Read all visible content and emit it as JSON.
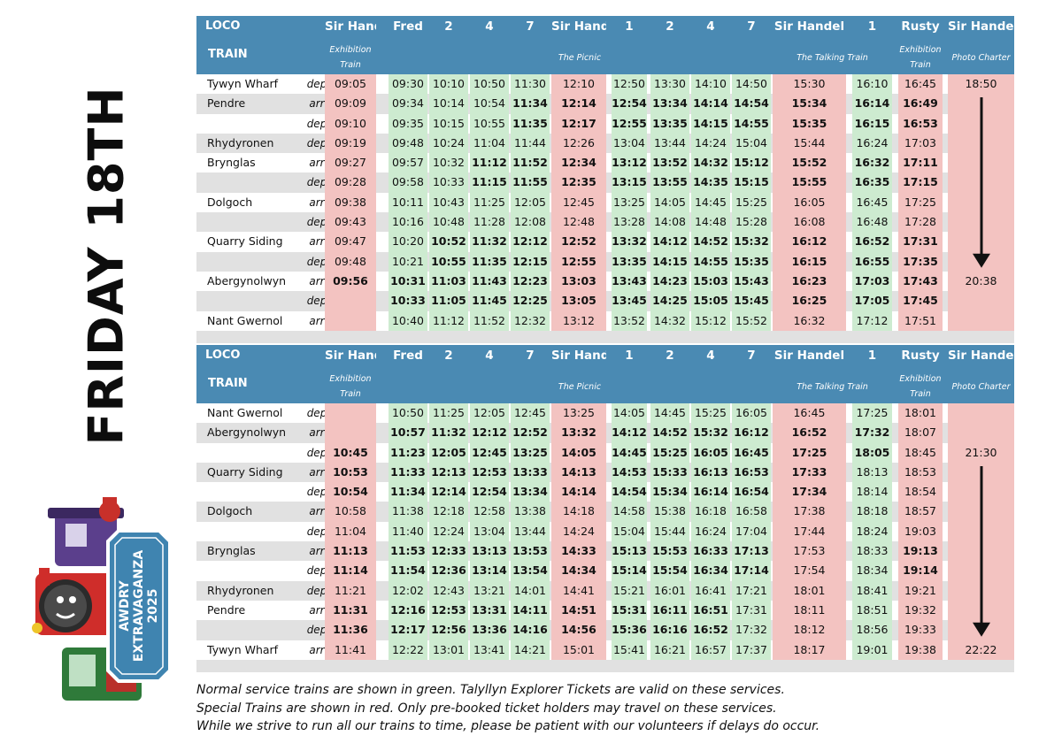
{
  "side_title": "FRIDAY 18TH",
  "logo": {
    "line1": "AWDRY",
    "line2": "EXTRAVAGANZA",
    "line3": "2025"
  },
  "colors": {
    "header": "#4a8ab3",
    "service": "#cdebd0",
    "special": "#f3c3c1",
    "stripe": "#e1e1e1"
  },
  "header_labels": {
    "loco": "LOCO",
    "train": "TRAIN"
  },
  "columns": [
    {
      "loco": "Sir Handel",
      "color": "red"
    },
    {
      "loco": "Fred",
      "color": "green"
    },
    {
      "loco": "2",
      "color": "green"
    },
    {
      "loco": "4",
      "color": "green"
    },
    {
      "loco": "7",
      "color": "green"
    },
    {
      "loco": "Sir Handel",
      "color": "red"
    },
    {
      "loco": "1",
      "color": "green"
    },
    {
      "loco": "2",
      "color": "green"
    },
    {
      "loco": "4",
      "color": "green"
    },
    {
      "loco": "7",
      "color": "green"
    },
    {
      "loco": "Sir Handel",
      "color": "red"
    },
    {
      "loco": "1",
      "color": "green"
    },
    {
      "loco": "Rusty",
      "color": "red"
    },
    {
      "loco": "Sir Handel",
      "color": "red"
    }
  ],
  "train_spans": [
    {
      "label": "Exhibition Train",
      "from": 0,
      "to": 0
    },
    {
      "label": "The Picnic",
      "from": 1,
      "to": 9
    },
    {
      "label": "The Talking Train",
      "from": 10,
      "to": 11
    },
    {
      "label": "Exhibition Train",
      "from": 12,
      "to": 12
    },
    {
      "label": "Photo Charter",
      "from": 13,
      "to": 13
    }
  ],
  "up_table": {
    "rows": [
      {
        "station": "Tywyn Wharf",
        "da": "dep",
        "times": [
          "09:05",
          "09:30",
          "10:10",
          "10:50",
          "11:30",
          "12:10",
          "12:50",
          "13:30",
          "14:10",
          "14:50",
          "15:30",
          "16:10",
          "16:45",
          "18:50"
        ],
        "bold": []
      },
      {
        "station": "Pendre",
        "da": "arr",
        "times": [
          "09:09",
          "09:34",
          "10:14",
          "10:54",
          "11:34",
          "12:14",
          "12:54",
          "13:34",
          "14:14",
          "14:54",
          "15:34",
          "16:14",
          "16:49",
          ""
        ],
        "bold": [
          4,
          5,
          6,
          7,
          8,
          9,
          10,
          11,
          12
        ]
      },
      {
        "station": "",
        "da": "dep",
        "times": [
          "09:10",
          "09:35",
          "10:15",
          "10:55",
          "11:35",
          "12:17",
          "12:55",
          "13:35",
          "14:15",
          "14:55",
          "15:35",
          "16:15",
          "16:53",
          ""
        ],
        "bold": [
          4,
          5,
          6,
          7,
          8,
          9,
          10,
          11,
          12
        ]
      },
      {
        "station": "Rhydyronen",
        "da": "dep",
        "times": [
          "09:19",
          "09:48",
          "10:24",
          "11:04",
          "11:44",
          "12:26",
          "13:04",
          "13:44",
          "14:24",
          "15:04",
          "15:44",
          "16:24",
          "17:03",
          ""
        ],
        "bold": []
      },
      {
        "station": "Brynglas",
        "da": "arr",
        "times": [
          "09:27",
          "09:57",
          "10:32",
          "11:12",
          "11:52",
          "12:34",
          "13:12",
          "13:52",
          "14:32",
          "15:12",
          "15:52",
          "16:32",
          "17:11",
          ""
        ],
        "bold": [
          3,
          4,
          5,
          6,
          7,
          8,
          9,
          10,
          11,
          12
        ]
      },
      {
        "station": "",
        "da": "dep",
        "times": [
          "09:28",
          "09:58",
          "10:33",
          "11:15",
          "11:55",
          "12:35",
          "13:15",
          "13:55",
          "14:35",
          "15:15",
          "15:55",
          "16:35",
          "17:15",
          ""
        ],
        "bold": [
          3,
          4,
          5,
          6,
          7,
          8,
          9,
          10,
          11,
          12
        ]
      },
      {
        "station": "Dolgoch",
        "da": "arr",
        "times": [
          "09:38",
          "10:11",
          "10:43",
          "11:25",
          "12:05",
          "12:45",
          "13:25",
          "14:05",
          "14:45",
          "15:25",
          "16:05",
          "16:45",
          "17:25",
          ""
        ],
        "bold": []
      },
      {
        "station": "",
        "da": "dep",
        "times": [
          "09:43",
          "10:16",
          "10:48",
          "11:28",
          "12:08",
          "12:48",
          "13:28",
          "14:08",
          "14:48",
          "15:28",
          "16:08",
          "16:48",
          "17:28",
          ""
        ],
        "bold": []
      },
      {
        "station": "Quarry Siding",
        "da": "arr",
        "times": [
          "09:47",
          "10:20",
          "10:52",
          "11:32",
          "12:12",
          "12:52",
          "13:32",
          "14:12",
          "14:52",
          "15:32",
          "16:12",
          "16:52",
          "17:31",
          ""
        ],
        "bold": [
          2,
          3,
          4,
          5,
          6,
          7,
          8,
          9,
          10,
          11,
          12
        ]
      },
      {
        "station": "",
        "da": "dep",
        "times": [
          "09:48",
          "10:21",
          "10:55",
          "11:35",
          "12:15",
          "12:55",
          "13:35",
          "14:15",
          "14:55",
          "15:35",
          "16:15",
          "16:55",
          "17:35",
          ""
        ],
        "bold": [
          2,
          3,
          4,
          5,
          6,
          7,
          8,
          9,
          10,
          11,
          12
        ]
      },
      {
        "station": "Abergynolwyn",
        "da": "arr",
        "times": [
          "09:56",
          "10:31",
          "11:03",
          "11:43",
          "12:23",
          "13:03",
          "13:43",
          "14:23",
          "15:03",
          "15:43",
          "16:23",
          "17:03",
          "17:43",
          "20:38"
        ],
        "bold": [
          0,
          1,
          2,
          3,
          4,
          5,
          6,
          7,
          8,
          9,
          10,
          11,
          12
        ]
      },
      {
        "station": "",
        "da": "dep",
        "times": [
          "",
          "10:33",
          "11:05",
          "11:45",
          "12:25",
          "13:05",
          "13:45",
          "14:25",
          "15:05",
          "15:45",
          "16:25",
          "17:05",
          "17:45",
          ""
        ],
        "bold": [
          1,
          2,
          3,
          4,
          5,
          6,
          7,
          8,
          9,
          10,
          11,
          12
        ]
      },
      {
        "station": "Nant Gwernol",
        "da": "arr",
        "times": [
          "",
          "10:40",
          "11:12",
          "11:52",
          "12:32",
          "13:12",
          "13:52",
          "14:32",
          "15:12",
          "15:52",
          "16:32",
          "17:12",
          "17:51",
          ""
        ],
        "bold": []
      }
    ]
  },
  "down_table": {
    "rows": [
      {
        "station": "Nant Gwernol",
        "da": "dep",
        "times": [
          "",
          "10:50",
          "11:25",
          "12:05",
          "12:45",
          "13:25",
          "14:05",
          "14:45",
          "15:25",
          "16:05",
          "16:45",
          "17:25",
          "18:01",
          ""
        ],
        "bold": []
      },
      {
        "station": "Abergynolwyn",
        "da": "arr",
        "times": [
          "",
          "10:57",
          "11:32",
          "12:12",
          "12:52",
          "13:32",
          "14:12",
          "14:52",
          "15:32",
          "16:12",
          "16:52",
          "17:32",
          "18:07",
          ""
        ],
        "bold": [
          1,
          2,
          3,
          4,
          5,
          6,
          7,
          8,
          9,
          10,
          11
        ]
      },
      {
        "station": "",
        "da": "dep",
        "times": [
          "10:45",
          "11:23",
          "12:05",
          "12:45",
          "13:25",
          "14:05",
          "14:45",
          "15:25",
          "16:05",
          "16:45",
          "17:25",
          "18:05",
          "18:45",
          "21:30"
        ],
        "bold": [
          0,
          1,
          2,
          3,
          4,
          5,
          6,
          7,
          8,
          9,
          10,
          11
        ]
      },
      {
        "station": "Quarry Siding",
        "da": "arr",
        "times": [
          "10:53",
          "11:33",
          "12:13",
          "12:53",
          "13:33",
          "14:13",
          "14:53",
          "15:33",
          "16:13",
          "16:53",
          "17:33",
          "18:13",
          "18:53",
          ""
        ],
        "bold": [
          0,
          1,
          2,
          3,
          4,
          5,
          6,
          7,
          8,
          9,
          10
        ]
      },
      {
        "station": "",
        "da": "dep",
        "times": [
          "10:54",
          "11:34",
          "12:14",
          "12:54",
          "13:34",
          "14:14",
          "14:54",
          "15:34",
          "16:14",
          "16:54",
          "17:34",
          "18:14",
          "18:54",
          ""
        ],
        "bold": [
          0,
          1,
          2,
          3,
          4,
          5,
          6,
          7,
          8,
          9,
          10
        ]
      },
      {
        "station": "Dolgoch",
        "da": "arr",
        "times": [
          "10:58",
          "11:38",
          "12:18",
          "12:58",
          "13:38",
          "14:18",
          "14:58",
          "15:38",
          "16:18",
          "16:58",
          "17:38",
          "18:18",
          "18:57",
          ""
        ],
        "bold": []
      },
      {
        "station": "",
        "da": "dep",
        "times": [
          "11:04",
          "11:40",
          "12:24",
          "13:04",
          "13:44",
          "14:24",
          "15:04",
          "15:44",
          "16:24",
          "17:04",
          "17:44",
          "18:24",
          "19:03",
          ""
        ],
        "bold": []
      },
      {
        "station": "Brynglas",
        "da": "arr",
        "times": [
          "11:13",
          "11:53",
          "12:33",
          "13:13",
          "13:53",
          "14:33",
          "15:13",
          "15:53",
          "16:33",
          "17:13",
          "17:53",
          "18:33",
          "19:13",
          ""
        ],
        "bold": [
          0,
          1,
          2,
          3,
          4,
          5,
          6,
          7,
          8,
          9,
          12
        ]
      },
      {
        "station": "",
        "da": "dep",
        "times": [
          "11:14",
          "11:54",
          "12:36",
          "13:14",
          "13:54",
          "14:34",
          "15:14",
          "15:54",
          "16:34",
          "17:14",
          "17:54",
          "18:34",
          "19:14",
          ""
        ],
        "bold": [
          0,
          1,
          2,
          3,
          4,
          5,
          6,
          7,
          8,
          9,
          12
        ]
      },
      {
        "station": "Rhydyronen",
        "da": "dep",
        "times": [
          "11:21",
          "12:02",
          "12:43",
          "13:21",
          "14:01",
          "14:41",
          "15:21",
          "16:01",
          "16:41",
          "17:21",
          "18:01",
          "18:41",
          "19:21",
          ""
        ],
        "bold": []
      },
      {
        "station": "Pendre",
        "da": "arr",
        "times": [
          "11:31",
          "12:16",
          "12:53",
          "13:31",
          "14:11",
          "14:51",
          "15:31",
          "16:11",
          "16:51",
          "17:31",
          "18:11",
          "18:51",
          "19:32",
          ""
        ],
        "bold": [
          0,
          1,
          2,
          3,
          4,
          5,
          6,
          7,
          8
        ]
      },
      {
        "station": "",
        "da": "dep",
        "times": [
          "11:36",
          "12:17",
          "12:56",
          "13:36",
          "14:16",
          "14:56",
          "15:36",
          "16:16",
          "16:52",
          "17:32",
          "18:12",
          "18:56",
          "19:33",
          ""
        ],
        "bold": [
          0,
          1,
          2,
          3,
          4,
          5,
          6,
          7,
          8
        ]
      },
      {
        "station": "Tywyn Wharf",
        "da": "arr",
        "times": [
          "11:41",
          "12:22",
          "13:01",
          "13:41",
          "14:21",
          "15:01",
          "15:41",
          "16:21",
          "16:57",
          "17:37",
          "18:17",
          "19:01",
          "19:38",
          "22:22"
        ],
        "bold": []
      }
    ]
  },
  "footnotes": [
    "Normal service trains are shown in green. Talyllyn Explorer Tickets are valid on these services.",
    "Special Trains are shown in red. Only pre-booked ticket holders may travel on these services.",
    "While we strive to run all our trains to time, please be patient with our volunteers if delays do occur."
  ]
}
